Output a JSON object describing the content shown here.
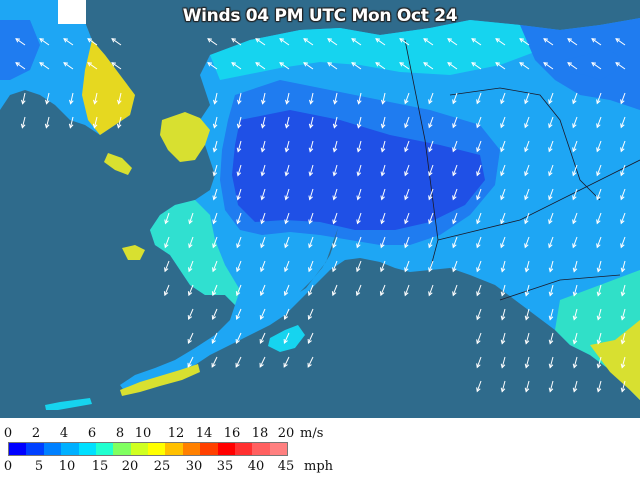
{
  "title": "Winds 04 PM UTC Mon Oct 24",
  "legend": {
    "ms_ticks": [
      "0",
      "2",
      "4",
      "6",
      "8",
      "10",
      "12",
      "14",
      "16",
      "18",
      "20"
    ],
    "ms_unit": "m/s",
    "mph_ticks": [
      "0",
      "5",
      "10",
      "15",
      "20",
      "25",
      "30",
      "35",
      "40",
      "45"
    ],
    "mph_unit": "mph",
    "colors": [
      "#0000ff",
      "#0040ff",
      "#0080ff",
      "#00b0ff",
      "#00e0ff",
      "#20ffd0",
      "#80ff60",
      "#d0ff20",
      "#ffff00",
      "#ffc000",
      "#ff8000",
      "#ff4000",
      "#ff0000",
      "#ff3030",
      "#ff6060",
      "#ff8080"
    ]
  },
  "map_colors": {
    "ocean": "#2f6b8c",
    "land_calm": "#1f50e6",
    "land_light": "#1f7cf0",
    "land_moderate": "#1ea6f4",
    "land_breezy": "#16d4ef",
    "land_windy": "#30f0c0",
    "land_strong": "#e6e020"
  }
}
